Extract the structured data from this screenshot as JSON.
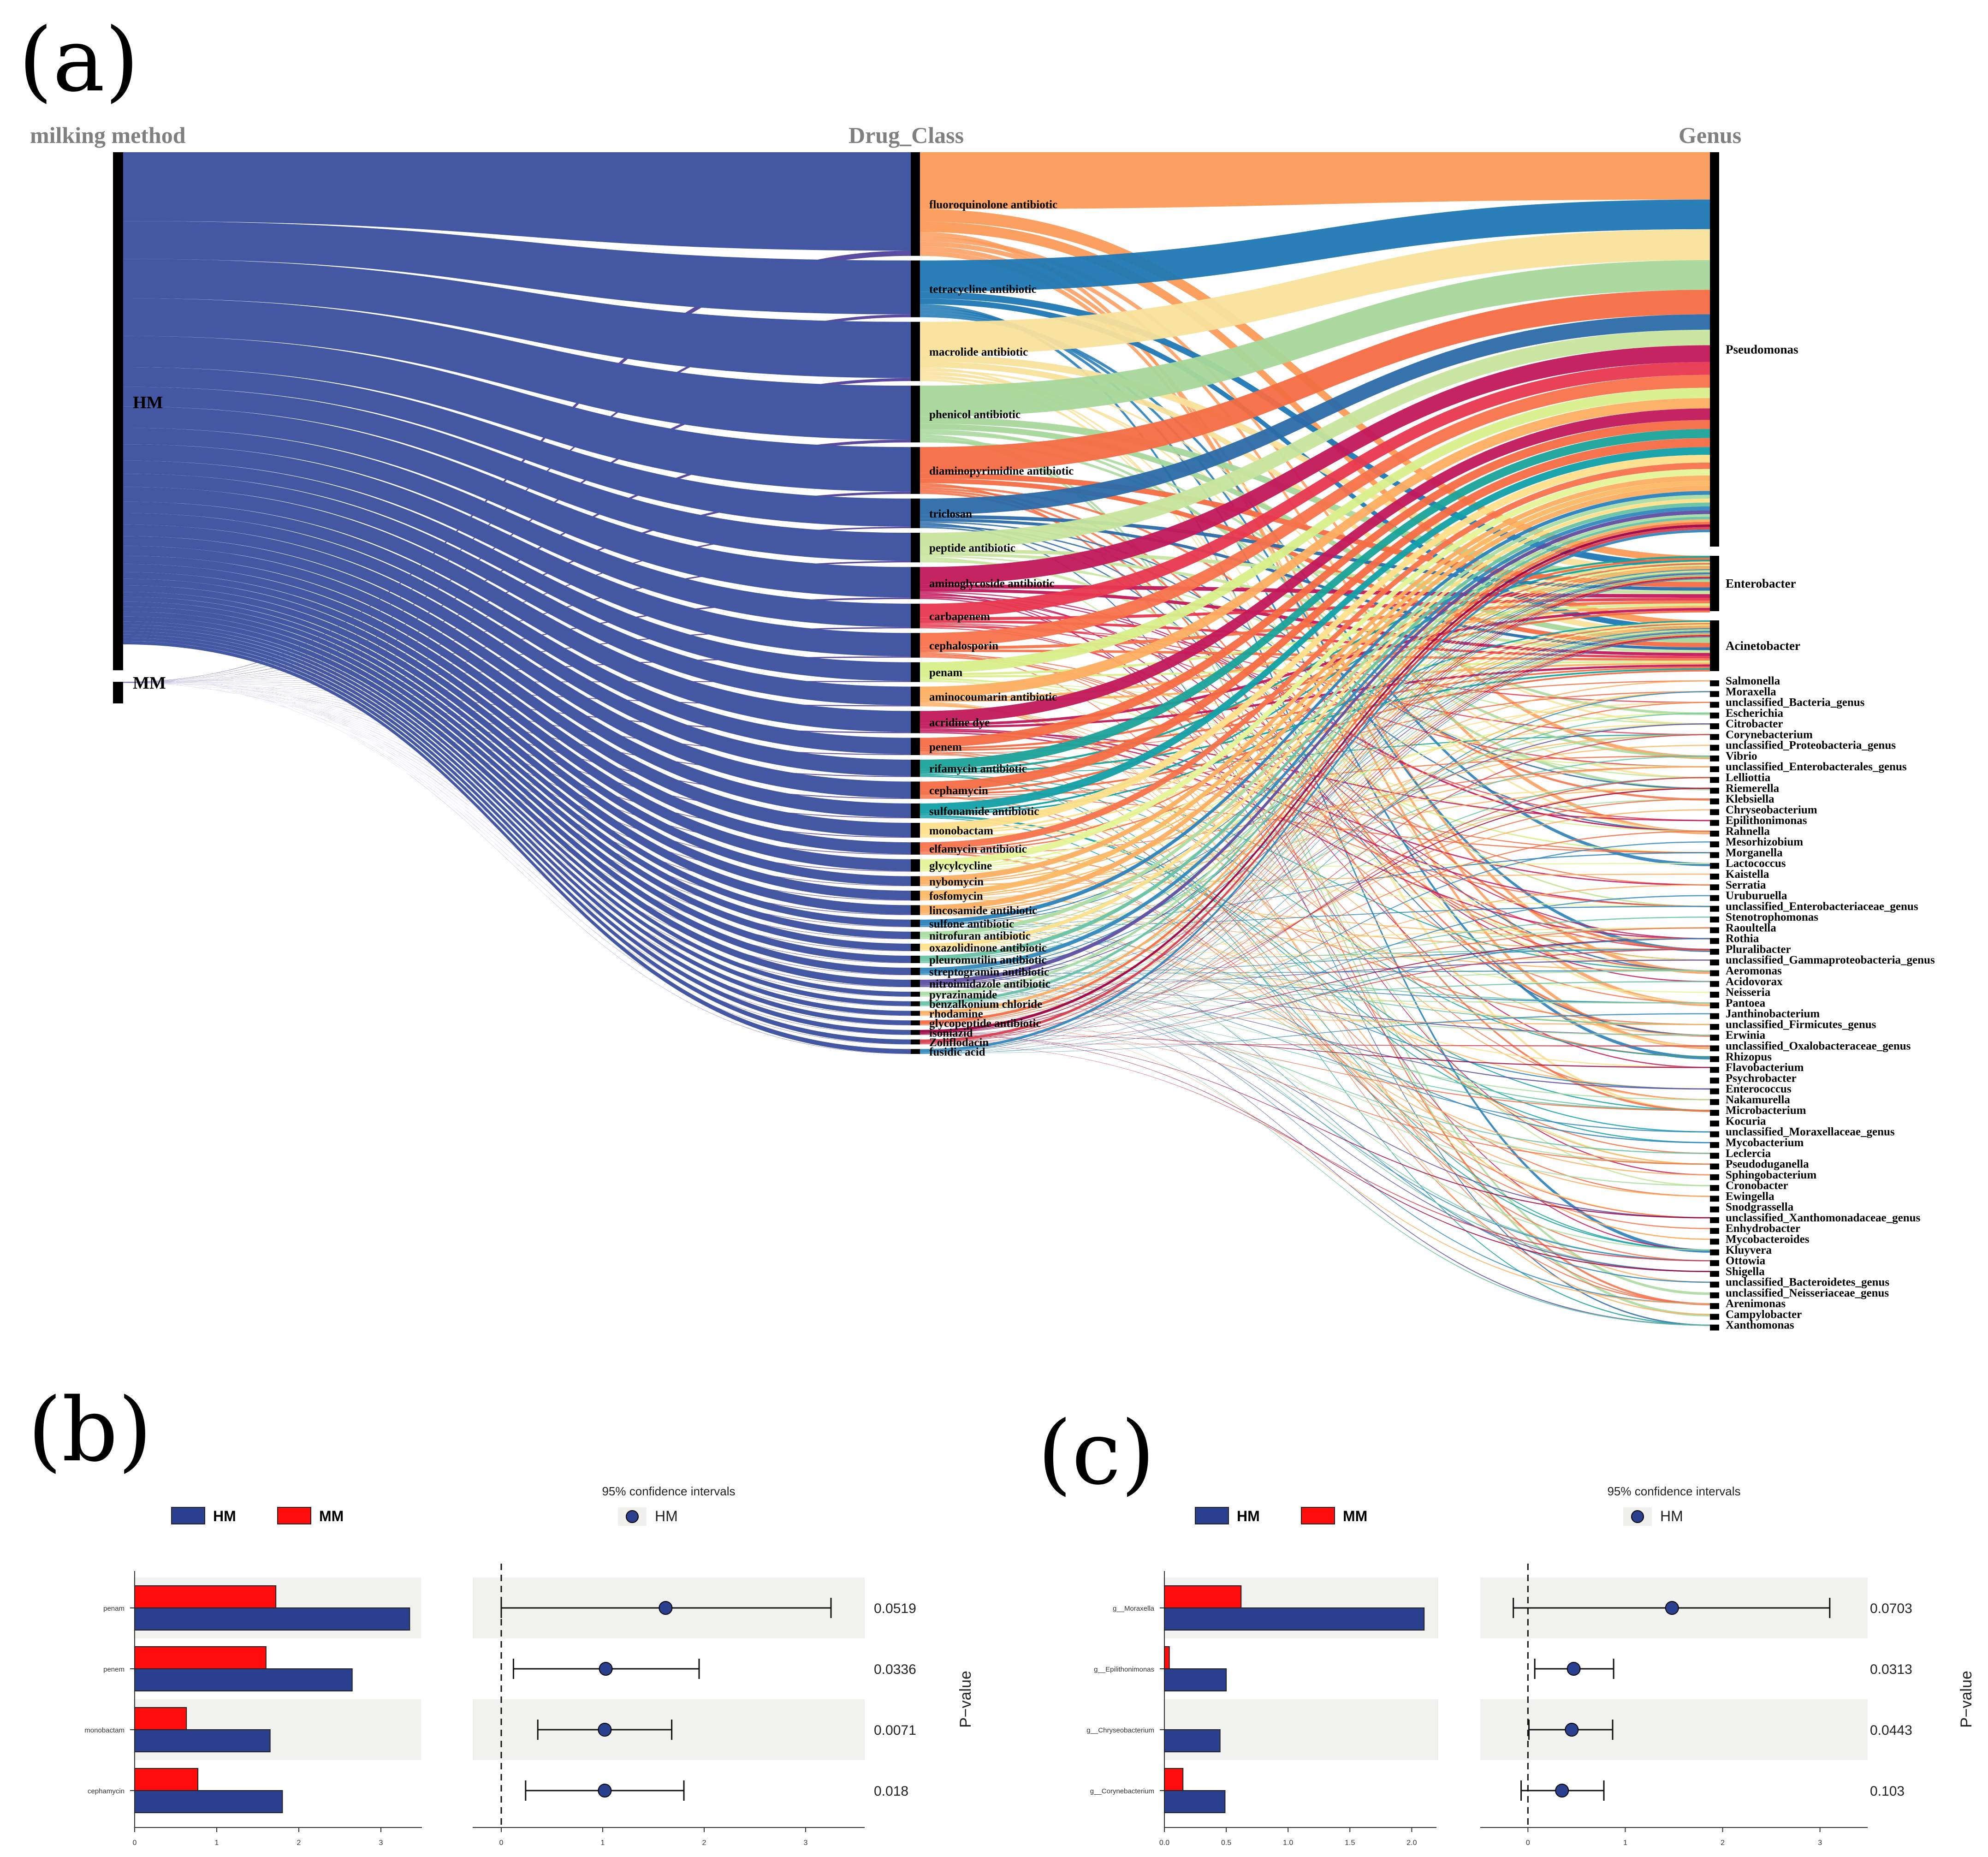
{
  "panels": {
    "a": "(a)",
    "b": "(b)",
    "c": "(c)"
  },
  "chart_data": [
    {
      "type": "sankey",
      "panel": "(a)",
      "column_titles": [
        "milking method",
        "Drug_Class",
        "Genus"
      ],
      "milking_method": [
        {
          "name": "HM",
          "share": 0.96
        },
        {
          "name": "MM",
          "share": 0.04
        }
      ],
      "drug_classes": [
        {
          "name": "fluoroquinolone antibiotic",
          "value": 21.0,
          "color": "#fc9b5a"
        },
        {
          "name": "tetracycline antibiotic",
          "value": 11.5,
          "color": "#1f78b4"
        },
        {
          "name": "macrolide antibiotic",
          "value": 12.0,
          "color": "#f9e29c"
        },
        {
          "name": "phenicol antibiotic",
          "value": 11.5,
          "color": "#a6d79a"
        },
        {
          "name": "diaminopyrimidine antibiotic",
          "value": 9.5,
          "color": "#f46d43"
        },
        {
          "name": "triclosan",
          "value": 6.0,
          "color": "#2b6aa8"
        },
        {
          "name": "peptide antibiotic",
          "value": 6.0,
          "color": "#c7e59d"
        },
        {
          "name": "aminoglycoside antibiotic",
          "value": 6.5,
          "color": "#c2185b"
        },
        {
          "name": "carbapenem",
          "value": 5.0,
          "color": "#e8384f"
        },
        {
          "name": "cephalosporin",
          "value": 5.0,
          "color": "#f7734c"
        },
        {
          "name": "penam",
          "value": 4.0,
          "color": "#d9ef8b"
        },
        {
          "name": "aminocoumarin antibiotic",
          "value": 4.0,
          "color": "#fdae61"
        },
        {
          "name": "acridine dye",
          "value": 4.5,
          "color": "#c2185b"
        },
        {
          "name": "penem",
          "value": 3.5,
          "color": "#f46d43"
        },
        {
          "name": "rifamycin antibiotic",
          "value": 3.5,
          "color": "#1aa39a"
        },
        {
          "name": "cephamycin",
          "value": 3.5,
          "color": "#f46d43"
        },
        {
          "name": "sulfonamide antibiotic",
          "value": 3.0,
          "color": "#12a0a8"
        },
        {
          "name": "monobactam",
          "value": 3.0,
          "color": "#fee08b"
        },
        {
          "name": "elfamycin antibiotic",
          "value": 2.5,
          "color": "#f7734c"
        },
        {
          "name": "glycylcycline",
          "value": 2.5,
          "color": "#e6f598"
        },
        {
          "name": "nybomycin",
          "value": 2.0,
          "color": "#fdae61"
        },
        {
          "name": "fosfomycin",
          "value": 2.0,
          "color": "#fdb863"
        },
        {
          "name": "lincosamide antibiotic",
          "value": 2.0,
          "color": "#fdae61"
        },
        {
          "name": "sulfone antibiotic",
          "value": 1.5,
          "color": "#2b83ba"
        },
        {
          "name": "nitrofuran antibiotic",
          "value": 1.5,
          "color": "#abdda4"
        },
        {
          "name": "oxazolidinone antibiotic",
          "value": 1.5,
          "color": "#fee08b"
        },
        {
          "name": "pleuromutilin antibiotic",
          "value": 1.5,
          "color": "#66c2a5"
        },
        {
          "name": "streptogramin antibiotic",
          "value": 1.5,
          "color": "#3288bd"
        },
        {
          "name": "nitroimidazole antibiotic",
          "value": 1.5,
          "color": "#5e4fa2"
        },
        {
          "name": "pyrazinamide",
          "value": 1.0,
          "color": "#abdda4"
        },
        {
          "name": "benzalkonium chloride",
          "value": 1.0,
          "color": "#66c2a5"
        },
        {
          "name": "rhodamine",
          "value": 1.0,
          "color": "#fdae61"
        },
        {
          "name": "glycopeptide antibiotic",
          "value": 1.0,
          "color": "#f46d43"
        },
        {
          "name": "isoniazid",
          "value": 1.0,
          "color": "#9e0142"
        },
        {
          "name": "Zoliflodacin",
          "value": 1.0,
          "color": "#d53e4f"
        },
        {
          "name": "fusidic acid",
          "value": 1.0,
          "color": "#3288bd"
        }
      ],
      "genera": [
        {
          "name": "Pseudomonas",
          "value": 100
        },
        {
          "name": "Enterobacter",
          "value": 15
        },
        {
          "name": "Acinetobacter",
          "value": 14
        },
        {
          "name": "Salmonella",
          "value": 1
        },
        {
          "name": "Moraxella",
          "value": 1
        },
        {
          "name": "unclassified_Bacteria_genus",
          "value": 1
        },
        {
          "name": "Escherichia",
          "value": 1
        },
        {
          "name": "Citrobacter",
          "value": 1
        },
        {
          "name": "Corynebacterium",
          "value": 1
        },
        {
          "name": "unclassified_Proteobacteria_genus",
          "value": 1
        },
        {
          "name": "Vibrio",
          "value": 1
        },
        {
          "name": "unclassified_Enterobacterales_genus",
          "value": 1
        },
        {
          "name": "Lelliottia",
          "value": 1
        },
        {
          "name": "Riemerella",
          "value": 1
        },
        {
          "name": "Klebsiella",
          "value": 1
        },
        {
          "name": "Chryseobacterium",
          "value": 1
        },
        {
          "name": "Epilithonimonas",
          "value": 1
        },
        {
          "name": "Rahnella",
          "value": 1
        },
        {
          "name": "Mesorhizobium",
          "value": 1
        },
        {
          "name": "Morganella",
          "value": 1
        },
        {
          "name": "Lactococcus",
          "value": 1
        },
        {
          "name": "Kaistella",
          "value": 1
        },
        {
          "name": "Serratia",
          "value": 1
        },
        {
          "name": "Uruburuella",
          "value": 1
        },
        {
          "name": "unclassified_Enterobacteriaceae_genus",
          "value": 1
        },
        {
          "name": "Stenotrophomonas",
          "value": 1
        },
        {
          "name": "Raoultella",
          "value": 1
        },
        {
          "name": "Rothia",
          "value": 1
        },
        {
          "name": "Pluralibacter",
          "value": 1
        },
        {
          "name": "unclassified_Gammaproteobacteria_genus",
          "value": 1
        },
        {
          "name": "Aeromonas",
          "value": 1
        },
        {
          "name": "Acidovorax",
          "value": 1
        },
        {
          "name": "Neisseria",
          "value": 1
        },
        {
          "name": "Pantoea",
          "value": 1
        },
        {
          "name": "Janthinobacterium",
          "value": 1
        },
        {
          "name": "unclassified_Firmicutes_genus",
          "value": 1
        },
        {
          "name": "Erwinia",
          "value": 1
        },
        {
          "name": "unclassified_Oxalobacteraceae_genus",
          "value": 1
        },
        {
          "name": "Rhizopus",
          "value": 1
        },
        {
          "name": "Flavobacterium",
          "value": 1
        },
        {
          "name": "Psychrobacter",
          "value": 1
        },
        {
          "name": "Enterococcus",
          "value": 1
        },
        {
          "name": "Nakamurella",
          "value": 1
        },
        {
          "name": "Microbacterium",
          "value": 1
        },
        {
          "name": "Kocuria",
          "value": 1
        },
        {
          "name": "unclassified_Moraxellaceae_genus",
          "value": 1
        },
        {
          "name": "Mycobacterium",
          "value": 1
        },
        {
          "name": "Leclercia",
          "value": 1
        },
        {
          "name": "Pseudoduganella",
          "value": 1
        },
        {
          "name": "Sphingobacterium",
          "value": 1
        },
        {
          "name": "Cronobacter",
          "value": 1
        },
        {
          "name": "Ewingella",
          "value": 1
        },
        {
          "name": "Snodgrassella",
          "value": 1
        },
        {
          "name": "unclassified_Xanthomonadaceae_genus",
          "value": 1
        },
        {
          "name": "Enhydrobacter",
          "value": 1
        },
        {
          "name": "Mycobacteroides",
          "value": 1
        },
        {
          "name": "Kluyvera",
          "value": 1
        },
        {
          "name": "Ottowia",
          "value": 1
        },
        {
          "name": "Shigella",
          "value": 1
        },
        {
          "name": "unclassified_Bacteroidetes_genus",
          "value": 1
        },
        {
          "name": "unclassified_Neisseriaceae_genus",
          "value": 1
        },
        {
          "name": "Arenimonas",
          "value": 1
        },
        {
          "name": "Campylobacter",
          "value": 1
        },
        {
          "name": "Xanthomonas",
          "value": 1
        }
      ]
    },
    {
      "type": "bar_forest",
      "panel": "(b)",
      "legend": [
        "HM",
        "MM"
      ],
      "colors": {
        "HM": "#2b3f8f",
        "MM": "#ff0d0d"
      },
      "ci_title": "95% confidence intervals",
      "ci_legend": "HM",
      "pvalue_label": "P−value",
      "categories": [
        "penam",
        "penem",
        "monobactam",
        "cephamycin"
      ],
      "bars": {
        "HM": [
          3.35,
          2.65,
          1.65,
          1.8
        ],
        "MM": [
          1.72,
          1.6,
          0.63,
          0.77
        ]
      },
      "bar_xlim": [
        0,
        3.5
      ],
      "bar_ticks": [
        "0",
        "1",
        "2",
        "3"
      ],
      "ci": [
        {
          "est": 1.62,
          "low": 0.0,
          "high": 3.25
        },
        {
          "est": 1.03,
          "low": 0.12,
          "high": 1.95
        },
        {
          "est": 1.02,
          "low": 0.36,
          "high": 1.68
        },
        {
          "est": 1.02,
          "low": 0.24,
          "high": 1.8
        }
      ],
      "ci_xlim": [
        -0.1,
        3.4
      ],
      "ci_ticks": [
        "0",
        "1",
        "2",
        "3"
      ],
      "pvalues": [
        "0.0519",
        "0.0336",
        "0.0071",
        "0.018"
      ]
    },
    {
      "type": "bar_forest",
      "panel": "(c)",
      "legend": [
        "HM",
        "MM"
      ],
      "colors": {
        "HM": "#2b3f8f",
        "MM": "#ff0d0d"
      },
      "ci_title": "95% confidence intervals",
      "ci_legend": "HM",
      "pvalue_label": "P−value",
      "categories": [
        "g__Moraxella",
        "g__Epilithonimonas",
        "g__Chryseobacterium",
        "g__Corynebacterium"
      ],
      "bars": {
        "HM": [
          2.1,
          0.5,
          0.45,
          0.49
        ],
        "MM": [
          0.62,
          0.04,
          0.0,
          0.15
        ]
      },
      "bar_xlim": [
        0,
        2.2
      ],
      "bar_ticks": [
        "0.0",
        "0.5",
        "1.0",
        "1.5",
        "2.0"
      ],
      "ci": [
        {
          "est": 1.48,
          "low": -0.15,
          "high": 3.1
        },
        {
          "est": 0.47,
          "low": 0.07,
          "high": 0.88
        },
        {
          "est": 0.45,
          "low": 0.01,
          "high": 0.87
        },
        {
          "est": 0.35,
          "low": -0.07,
          "high": 0.78
        }
      ],
      "ci_xlim": [
        -0.3,
        3.3
      ],
      "ci_ticks": [
        "0",
        "1",
        "2",
        "3"
      ],
      "pvalues": [
        "0.0703",
        "0.0313",
        "0.0443",
        "0.103"
      ]
    }
  ]
}
